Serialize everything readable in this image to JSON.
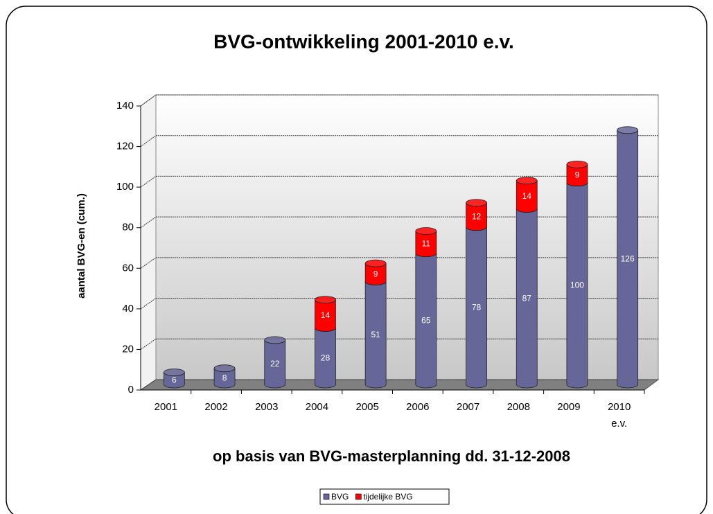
{
  "chart_data": {
    "type": "bar",
    "stacked": true,
    "title": "BVG-ontwikkeling 2001-2010 e.v.",
    "subtitle": "op basis van BVG-masterplanning dd. 31-12-2008",
    "y_label": "aantal BVG-en (cum.)",
    "categories": [
      "2001",
      "2002",
      "2003",
      "2004",
      "2005",
      "2006",
      "2007",
      "2008",
      "2009",
      "2010 e.v."
    ],
    "series": [
      {
        "name": "BVG",
        "color": "#666699",
        "values": [
          6,
          8,
          22,
          28,
          51,
          65,
          78,
          87,
          100,
          126
        ]
      },
      {
        "name": "tijdelijke BVG",
        "color": "#ff0000",
        "values": [
          null,
          null,
          null,
          14,
          9,
          11,
          12,
          14,
          9,
          null
        ]
      }
    ],
    "ylim": [
      0,
      140
    ],
    "yticks": [
      0,
      20,
      40,
      60,
      80,
      100,
      120,
      140
    ],
    "grid": true,
    "legend": "bottom"
  }
}
